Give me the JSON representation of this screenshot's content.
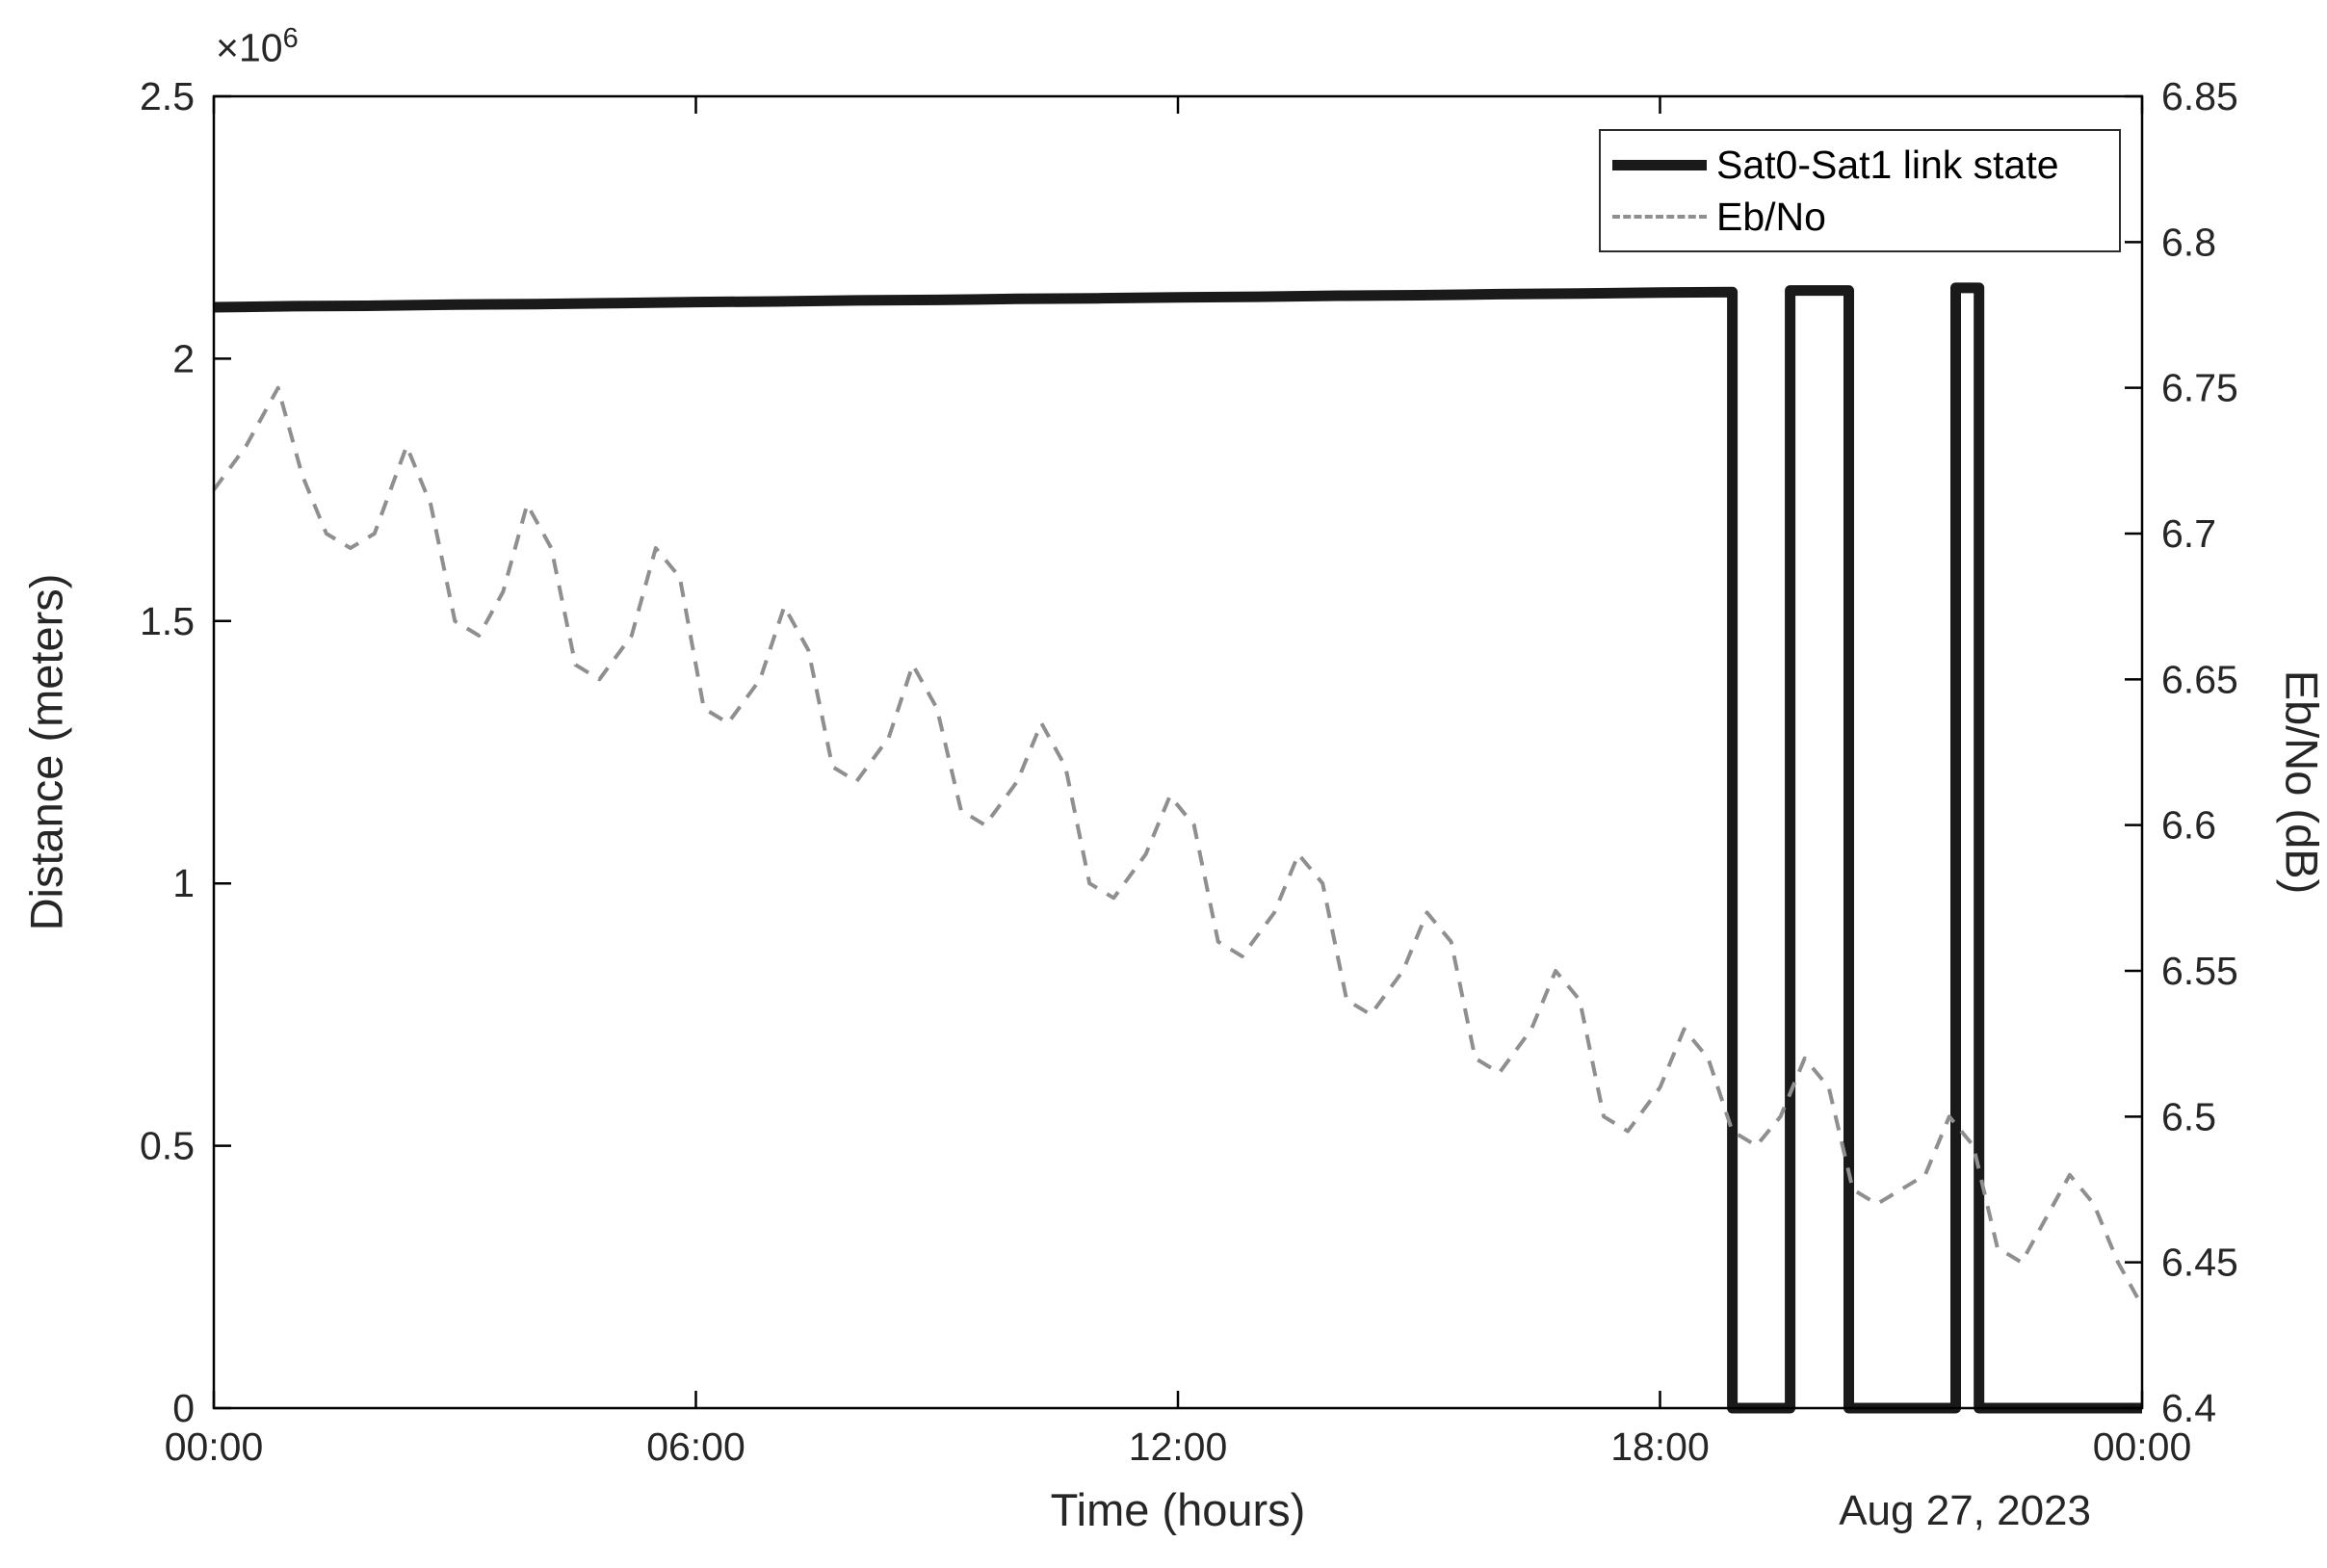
{
  "figure": {
    "xlabel": "Time (hours)",
    "date_label": "Aug 27, 2023",
    "ylabel_left": "Distance (meters)",
    "ylabel_right": "Eb/No (dB)",
    "exponent_base": "×10",
    "exponent_power": "6"
  },
  "legend": {
    "position": "top-right",
    "entries": [
      {
        "label": "Sat0-Sat1 link state"
      },
      {
        "label": "Eb/No"
      }
    ]
  },
  "chart_data": {
    "type": "line",
    "title": "",
    "xlabel": "Time (hours)",
    "date_label": "Aug 27, 2023",
    "grid": false,
    "xlim": [
      0,
      24
    ],
    "xticks": {
      "values": [
        0,
        6,
        12,
        18,
        24
      ],
      "labels": [
        "00:00",
        "06:00",
        "12:00",
        "18:00",
        "00:00"
      ]
    },
    "left_axis": {
      "label": "Distance (meters)",
      "lim": [
        0,
        2500000
      ],
      "multiplier": "×10^6",
      "ticks": [
        0,
        500000,
        1000000,
        1500000,
        2000000,
        2500000
      ],
      "tick_labels": [
        "0",
        "0.5",
        "1",
        "1.5",
        "2",
        "2.5"
      ]
    },
    "right_axis": {
      "label": "Eb/No (dB)",
      "lim": [
        6.4,
        6.85
      ],
      "ticks": [
        6.4,
        6.45,
        6.5,
        6.55,
        6.6,
        6.65,
        6.7,
        6.75,
        6.8,
        6.85
      ],
      "tick_labels": [
        "6.4",
        "6.45",
        "6.5",
        "6.55",
        "6.6",
        "6.65",
        "6.7",
        "6.75",
        "6.8",
        "6.85"
      ]
    },
    "series": [
      {
        "name": "Sat0-Sat1 link state",
        "axis": "left",
        "color": "#1a1a1a",
        "width": 11,
        "dash": "",
        "points": [
          [
            0,
            2098000
          ],
          [
            1,
            2100000
          ],
          [
            2,
            2101000
          ],
          [
            3,
            2103000
          ],
          [
            4,
            2104000
          ],
          [
            5,
            2106000
          ],
          [
            6,
            2108000
          ],
          [
            7,
            2109000
          ],
          [
            8,
            2111000
          ],
          [
            9,
            2112000
          ],
          [
            10,
            2114000
          ],
          [
            11,
            2115000
          ],
          [
            12,
            2117000
          ],
          [
            13,
            2118000
          ],
          [
            14,
            2120000
          ],
          [
            15,
            2121000
          ],
          [
            16,
            2123000
          ],
          [
            17,
            2124000
          ],
          [
            18,
            2126000
          ],
          [
            18.9,
            2127000
          ],
          [
            18.9,
            0
          ],
          [
            19.62,
            0
          ],
          [
            19.62,
            2130000
          ],
          [
            20.35,
            2130000
          ],
          [
            20.35,
            0
          ],
          [
            21.68,
            0
          ],
          [
            21.68,
            2135000
          ],
          [
            21.97,
            2135000
          ],
          [
            21.97,
            0
          ],
          [
            24,
            0
          ]
        ]
      },
      {
        "name": "Eb/No",
        "axis": "right",
        "color": "#8f8f8f",
        "width": 4,
        "dash": "16 12",
        "points": [
          [
            0,
            6.715
          ],
          [
            0.4,
            6.73
          ],
          [
            0.8,
            6.75
          ],
          [
            1.1,
            6.72
          ],
          [
            1.4,
            6.7
          ],
          [
            1.7,
            6.695
          ],
          [
            2.0,
            6.7
          ],
          [
            2.4,
            6.73
          ],
          [
            2.7,
            6.71
          ],
          [
            3.0,
            6.67
          ],
          [
            3.3,
            6.665
          ],
          [
            3.6,
            6.68
          ],
          [
            3.9,
            6.71
          ],
          [
            4.2,
            6.695
          ],
          [
            4.5,
            6.655
          ],
          [
            4.8,
            6.65
          ],
          [
            5.2,
            6.665
          ],
          [
            5.5,
            6.695
          ],
          [
            5.8,
            6.685
          ],
          [
            6.1,
            6.64
          ],
          [
            6.4,
            6.635
          ],
          [
            6.8,
            6.65
          ],
          [
            7.1,
            6.675
          ],
          [
            7.4,
            6.66
          ],
          [
            7.7,
            6.62
          ],
          [
            8.0,
            6.615
          ],
          [
            8.4,
            6.63
          ],
          [
            8.7,
            6.655
          ],
          [
            9.0,
            6.64
          ],
          [
            9.3,
            6.605
          ],
          [
            9.6,
            6.6
          ],
          [
            10.0,
            6.615
          ],
          [
            10.3,
            6.635
          ],
          [
            10.6,
            6.62
          ],
          [
            10.9,
            6.58
          ],
          [
            11.2,
            6.575
          ],
          [
            11.6,
            6.59
          ],
          [
            11.9,
            6.61
          ],
          [
            12.2,
            6.6
          ],
          [
            12.5,
            6.56
          ],
          [
            12.8,
            6.555
          ],
          [
            13.2,
            6.57
          ],
          [
            13.5,
            6.59
          ],
          [
            13.8,
            6.58
          ],
          [
            14.1,
            6.54
          ],
          [
            14.4,
            6.535
          ],
          [
            14.8,
            6.55
          ],
          [
            15.1,
            6.57
          ],
          [
            15.4,
            6.56
          ],
          [
            15.7,
            6.52
          ],
          [
            16.0,
            6.515
          ],
          [
            16.4,
            6.53
          ],
          [
            16.7,
            6.55
          ],
          [
            17.0,
            6.54
          ],
          [
            17.3,
            6.5
          ],
          [
            17.6,
            6.495
          ],
          [
            18.0,
            6.51
          ],
          [
            18.3,
            6.53
          ],
          [
            18.6,
            6.52
          ],
          [
            18.9,
            6.495
          ],
          [
            19.2,
            6.49
          ],
          [
            19.5,
            6.5
          ],
          [
            19.8,
            6.52
          ],
          [
            20.1,
            6.51
          ],
          [
            20.4,
            6.475
          ],
          [
            20.7,
            6.47
          ],
          [
            21.0,
            6.475
          ],
          [
            21.3,
            6.48
          ],
          [
            21.6,
            6.5
          ],
          [
            21.9,
            6.49
          ],
          [
            22.2,
            6.455
          ],
          [
            22.5,
            6.45
          ],
          [
            22.8,
            6.465
          ],
          [
            23.1,
            6.48
          ],
          [
            23.4,
            6.47
          ],
          [
            23.7,
            6.45
          ],
          [
            24.0,
            6.435
          ]
        ]
      }
    ],
    "legend": {
      "position": "top-right",
      "entries": [
        "Sat0-Sat1 link state",
        "Eb/No"
      ]
    }
  }
}
